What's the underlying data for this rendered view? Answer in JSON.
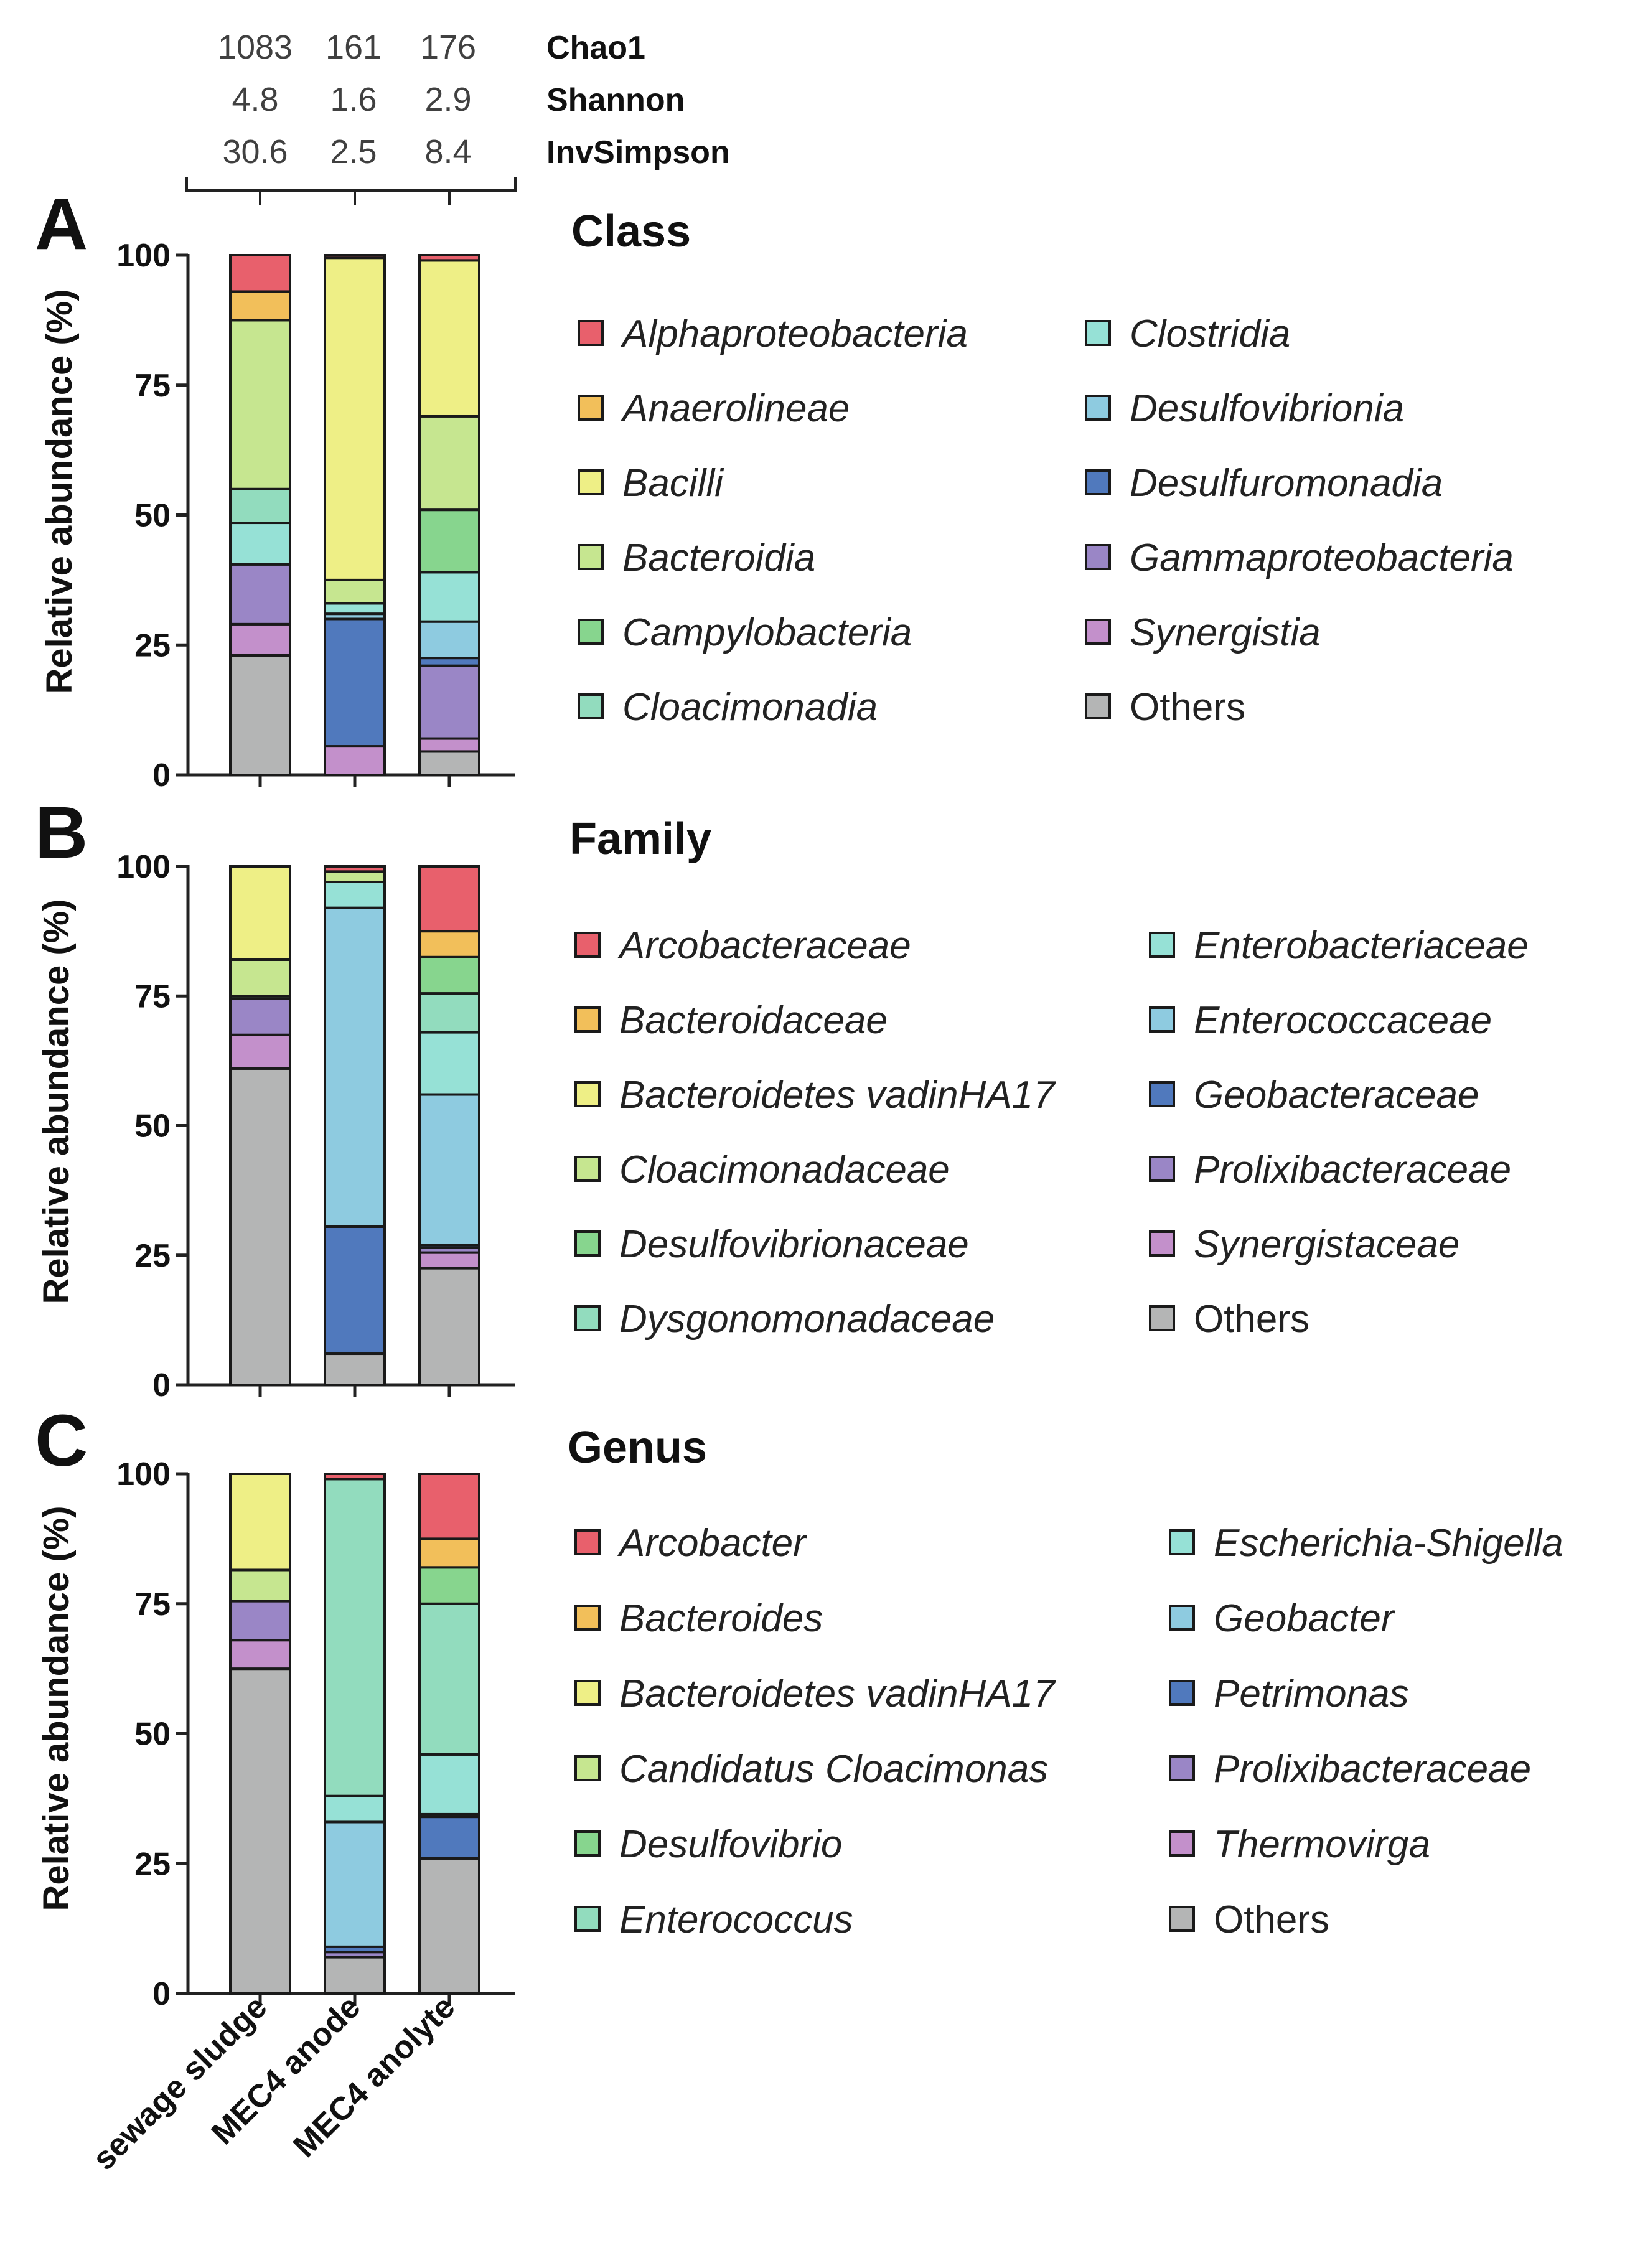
{
  "diversity": {
    "metrics": [
      {
        "name": "Chao1",
        "values": [
          "1083",
          "161",
          "176"
        ]
      },
      {
        "name": "Shannon",
        "values": [
          "4.8",
          "1.6",
          "2.9"
        ]
      },
      {
        "name": "InvSimpson",
        "values": [
          "30.6",
          "2.5",
          "8.4"
        ]
      }
    ]
  },
  "colors": {
    "red": "#e8606c",
    "orange": "#f2bf5a",
    "yellow": "#eeef86",
    "lime": "#c6e690",
    "green": "#87d58e",
    "mint": "#92dcbe",
    "aqua": "#96e1d6",
    "sky": "#8ecbe0",
    "blue": "#5079bd",
    "purple": "#9a86c6",
    "magenta": "#c390cb",
    "grey": "#b4b5b5"
  },
  "chart_data": [
    {
      "type": "bar",
      "panel": "A",
      "title": "Class",
      "ylabel": "Relative abundance (%)",
      "xlabel": "",
      "ylim": [
        0,
        100
      ],
      "yticks": [
        "0",
        "25",
        "50",
        "75",
        "100"
      ],
      "categories": [
        "sewage sludge",
        "MEC4 anode",
        "MEC4 anolyte"
      ],
      "series": [
        {
          "name": "Others",
          "color": "grey",
          "italic": false,
          "values": [
            23,
            0,
            4.5
          ]
        },
        {
          "name": "Synergistia",
          "color": "magenta",
          "italic": true,
          "values": [
            6,
            5.5,
            2.5
          ]
        },
        {
          "name": "Gammaproteobacteria",
          "color": "purple",
          "italic": true,
          "values": [
            11.5,
            0,
            14
          ]
        },
        {
          "name": "Desulfuromonadia",
          "color": "blue",
          "italic": true,
          "values": [
            0,
            24.5,
            1.5
          ]
        },
        {
          "name": "Desulfovibrionia",
          "color": "sky",
          "italic": true,
          "values": [
            0,
            1,
            7
          ]
        },
        {
          "name": "Clostridia",
          "color": "aqua",
          "italic": true,
          "values": [
            8,
            2,
            9.5
          ]
        },
        {
          "name": "Cloacimonadia",
          "color": "mint",
          "italic": true,
          "values": [
            6.5,
            0,
            0
          ]
        },
        {
          "name": "Campylobacteria",
          "color": "green",
          "italic": true,
          "values": [
            0,
            0,
            12
          ]
        },
        {
          "name": "Bacteroidia",
          "color": "lime",
          "italic": true,
          "values": [
            32.5,
            4.5,
            18
          ]
        },
        {
          "name": "Bacilli",
          "color": "yellow",
          "italic": true,
          "values": [
            0,
            62,
            30
          ]
        },
        {
          "name": "Anaerolineae",
          "color": "orange",
          "italic": true,
          "values": [
            5.5,
            0,
            0
          ]
        },
        {
          "name": "Alphaproteobacteria",
          "color": "red",
          "italic": true,
          "values": [
            7,
            0.5,
            1
          ]
        }
      ],
      "legend": [
        [
          "Alphaproteobacteria",
          "Anaerolineae",
          "Bacilli",
          "Bacteroidia",
          "Campylobacteria",
          "Cloacimonadia"
        ],
        [
          "Clostridia",
          "Desulfovibrionia",
          "Desulfuromonadia",
          "Gammaproteobacteria",
          "Synergistia",
          "Others"
        ]
      ]
    },
    {
      "type": "bar",
      "panel": "B",
      "title": "Family",
      "ylabel": "Relative abundance (%)",
      "xlabel": "",
      "ylim": [
        0,
        100
      ],
      "yticks": [
        "0",
        "25",
        "50",
        "75",
        "100"
      ],
      "categories": [
        "sewage sludge",
        "MEC4 anode",
        "MEC4 anolyte"
      ],
      "series": [
        {
          "name": "Others",
          "color": "grey",
          "italic": false,
          "values": [
            61,
            6,
            22.5
          ]
        },
        {
          "name": "Synergistaceae",
          "color": "magenta",
          "italic": true,
          "values": [
            6.5,
            0,
            3
          ]
        },
        {
          "name": "Prolixibacteraceae",
          "color": "purple",
          "italic": true,
          "values": [
            7,
            0,
            1
          ]
        },
        {
          "name": "Geobacteraceae",
          "color": "blue",
          "italic": true,
          "values": [
            0,
            24.5,
            0.5
          ]
        },
        {
          "name": "Enterococcaceae",
          "color": "sky",
          "italic": true,
          "values": [
            0,
            61.5,
            29
          ]
        },
        {
          "name": "Enterobacteriaceae",
          "color": "aqua",
          "italic": true,
          "values": [
            0,
            5,
            12
          ]
        },
        {
          "name": "Dysgonomonadaceae",
          "color": "mint",
          "italic": true,
          "values": [
            0,
            0,
            7.5
          ]
        },
        {
          "name": "Desulfovibrionaceae",
          "color": "green",
          "italic": true,
          "values": [
            0.5,
            0,
            7
          ]
        },
        {
          "name": "Cloacimonadaceae",
          "color": "lime",
          "italic": true,
          "values": [
            7,
            2,
            0
          ]
        },
        {
          "name": "Bacteroidetes vadinHA17",
          "color": "yellow",
          "italic": true,
          "values": [
            18,
            0,
            0
          ]
        },
        {
          "name": "Bacteroidaceae",
          "color": "orange",
          "italic": true,
          "values": [
            0,
            0,
            5
          ]
        },
        {
          "name": "Arcobacteraceae",
          "color": "red",
          "italic": true,
          "values": [
            0,
            1,
            12.5
          ]
        }
      ],
      "legend": [
        [
          "Arcobacteraceae",
          "Bacteroidaceae",
          "Bacteroidetes vadinHA17",
          "Cloacimonadaceae",
          "Desulfovibrionaceae",
          "Dysgonomonadaceae"
        ],
        [
          "Enterobacteriaceae",
          "Enterococcaceae",
          "Geobacteraceae",
          "Prolixibacteraceae",
          "Synergistaceae",
          "Others"
        ]
      ]
    },
    {
      "type": "bar",
      "panel": "C",
      "title": "Genus",
      "ylabel": "Relative abundance (%)",
      "xlabel": "",
      "ylim": [
        0,
        100
      ],
      "yticks": [
        "0",
        "25",
        "50",
        "75",
        "100"
      ],
      "categories": [
        "sewage sludge",
        "MEC4 anode",
        "MEC4 anolyte"
      ],
      "series": [
        {
          "name": "Others",
          "color": "grey",
          "italic": false,
          "values": [
            62.5,
            7,
            26
          ]
        },
        {
          "name": "Thermovirga",
          "color": "magenta",
          "italic": true,
          "values": [
            5.5,
            0,
            0
          ]
        },
        {
          "name": "Prolixibacteraceae",
          "color": "purple",
          "italic": true,
          "values": [
            7.5,
            1,
            0
          ]
        },
        {
          "name": "Petrimonas",
          "color": "blue",
          "italic": true,
          "values": [
            0,
            1,
            8
          ]
        },
        {
          "name": "Geobacter",
          "color": "sky",
          "italic": true,
          "values": [
            0,
            24,
            0.5
          ]
        },
        {
          "name": "Escherichia-Shigella",
          "color": "aqua",
          "italic": true,
          "values": [
            0,
            5,
            11.5
          ]
        },
        {
          "name": "Enterococcus",
          "color": "mint",
          "italic": true,
          "values": [
            0,
            61,
            29
          ]
        },
        {
          "name": "Desulfovibrio",
          "color": "green",
          "italic": true,
          "values": [
            0,
            0,
            7
          ]
        },
        {
          "name": "Candidatus Cloacimonas",
          "color": "lime",
          "italic": true,
          "values": [
            6,
            0,
            0
          ]
        },
        {
          "name": "Bacteroidetes vadinHA17",
          "color": "yellow",
          "italic": true,
          "values": [
            18.5,
            0,
            0
          ]
        },
        {
          "name": "Bacteroides",
          "color": "orange",
          "italic": true,
          "values": [
            0,
            0,
            5.5
          ]
        },
        {
          "name": "Arcobacter",
          "color": "red",
          "italic": true,
          "values": [
            0,
            1,
            12.5
          ]
        }
      ],
      "legend": [
        [
          "Arcobacter",
          "Bacteroides",
          "Bacteroidetes vadinHA17",
          "Candidatus Cloacimonas",
          "Desulfovibrio",
          "Enterococcus"
        ],
        [
          "Escherichia-Shigella",
          "Geobacter",
          "Petrimonas",
          "Prolixibacteraceae",
          "Thermovirga",
          "Others"
        ]
      ]
    }
  ]
}
